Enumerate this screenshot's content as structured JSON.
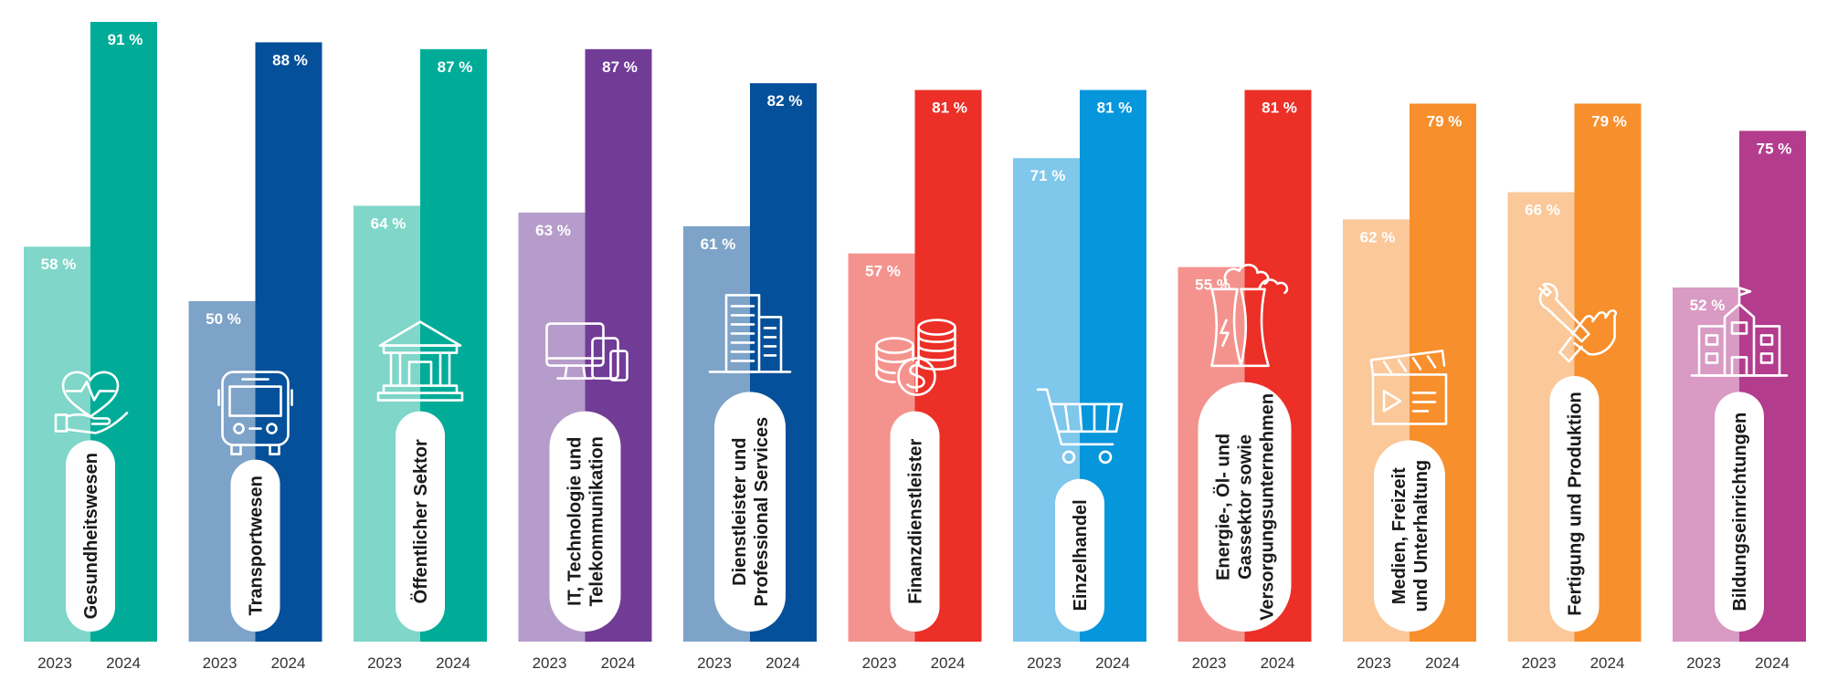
{
  "chart_data": {
    "type": "bar",
    "title": "",
    "xlabel": "",
    "ylabel": "",
    "ylim": [
      0,
      91
    ],
    "grid": false,
    "legend": "none",
    "series_labels": [
      "2023",
      "2024"
    ],
    "unit_suffix": " %",
    "categories": [
      {
        "label": "Gesundheitswesen",
        "lines": [
          "Gesundheitswesen"
        ],
        "icon": "heart-hand-icon",
        "v2023": 58,
        "v2024": 91,
        "c2023": "#7fd6c9",
        "c2024": "#00ac98"
      },
      {
        "label": "Transportwesen",
        "lines": [
          "Transportwesen"
        ],
        "icon": "bus-icon",
        "v2023": 50,
        "v2024": 88,
        "c2023": "#7ea3c8",
        "c2024": "#05509a"
      },
      {
        "label": "Öffentlicher Sektor",
        "lines": [
          "Öffentlicher Sektor"
        ],
        "icon": "government-building-icon",
        "v2023": 64,
        "v2024": 87,
        "c2023": "#7fd6c9",
        "c2024": "#00ac98"
      },
      {
        "label": "IT, Technologie und Telekommunikation",
        "lines": [
          "IT, Technologie und",
          "Telekommunikation"
        ],
        "icon": "devices-icon",
        "v2023": 63,
        "v2024": 87,
        "c2023": "#b69cca",
        "c2024": "#713c96"
      },
      {
        "label": "Dienstleister und Professional Services",
        "lines": [
          "Dienstleister und",
          "Professional Services"
        ],
        "icon": "office-building-icon",
        "v2023": 61,
        "v2024": 82,
        "c2023": "#7ea3c8",
        "c2024": "#05509a"
      },
      {
        "label": "Finanzdienstleister",
        "lines": [
          "Finanzdienstleister"
        ],
        "icon": "coins-icon",
        "v2023": 57,
        "v2024": 81,
        "c2023": "#f4938e",
        "c2024": "#ec2f27"
      },
      {
        "label": "Einzelhandel",
        "lines": [
          "Einzelhandel"
        ],
        "icon": "shopping-cart-icon",
        "v2023": 71,
        "v2024": 81,
        "c2023": "#7fc7eb",
        "c2024": "#0696db"
      },
      {
        "label": "Energie-, Öl- und Gassektor sowie Versorgungsunternehmen",
        "lines": [
          "Energie-, Öl- und",
          "Gassektor sowie",
          "Versorgungsunternehmen"
        ],
        "icon": "power-plant-icon",
        "v2023": 55,
        "v2024": 81,
        "c2023": "#f4938e",
        "c2024": "#ec2f27"
      },
      {
        "label": "Medien, Freizeit und Unterhaltung",
        "lines": [
          "Medien, Freizeit",
          "und Unterhaltung"
        ],
        "icon": "clapperboard-icon",
        "v2023": 62,
        "v2024": 79,
        "c2023": "#fbc89a",
        "c2024": "#f78f2c"
      },
      {
        "label": "Fertigung und Produktion",
        "lines": [
          "Fertigung und Produktion"
        ],
        "icon": "wrench-hand-icon",
        "v2023": 66,
        "v2024": 79,
        "c2023": "#fbc89a",
        "c2024": "#f78f2c"
      },
      {
        "label": "Bildungseinrichtungen",
        "lines": [
          "Bildungseinrichtungen"
        ],
        "icon": "school-building-icon",
        "v2023": 52,
        "v2024": 75,
        "c2023": "#d99ac4",
        "c2024": "#b33c8d"
      }
    ]
  }
}
